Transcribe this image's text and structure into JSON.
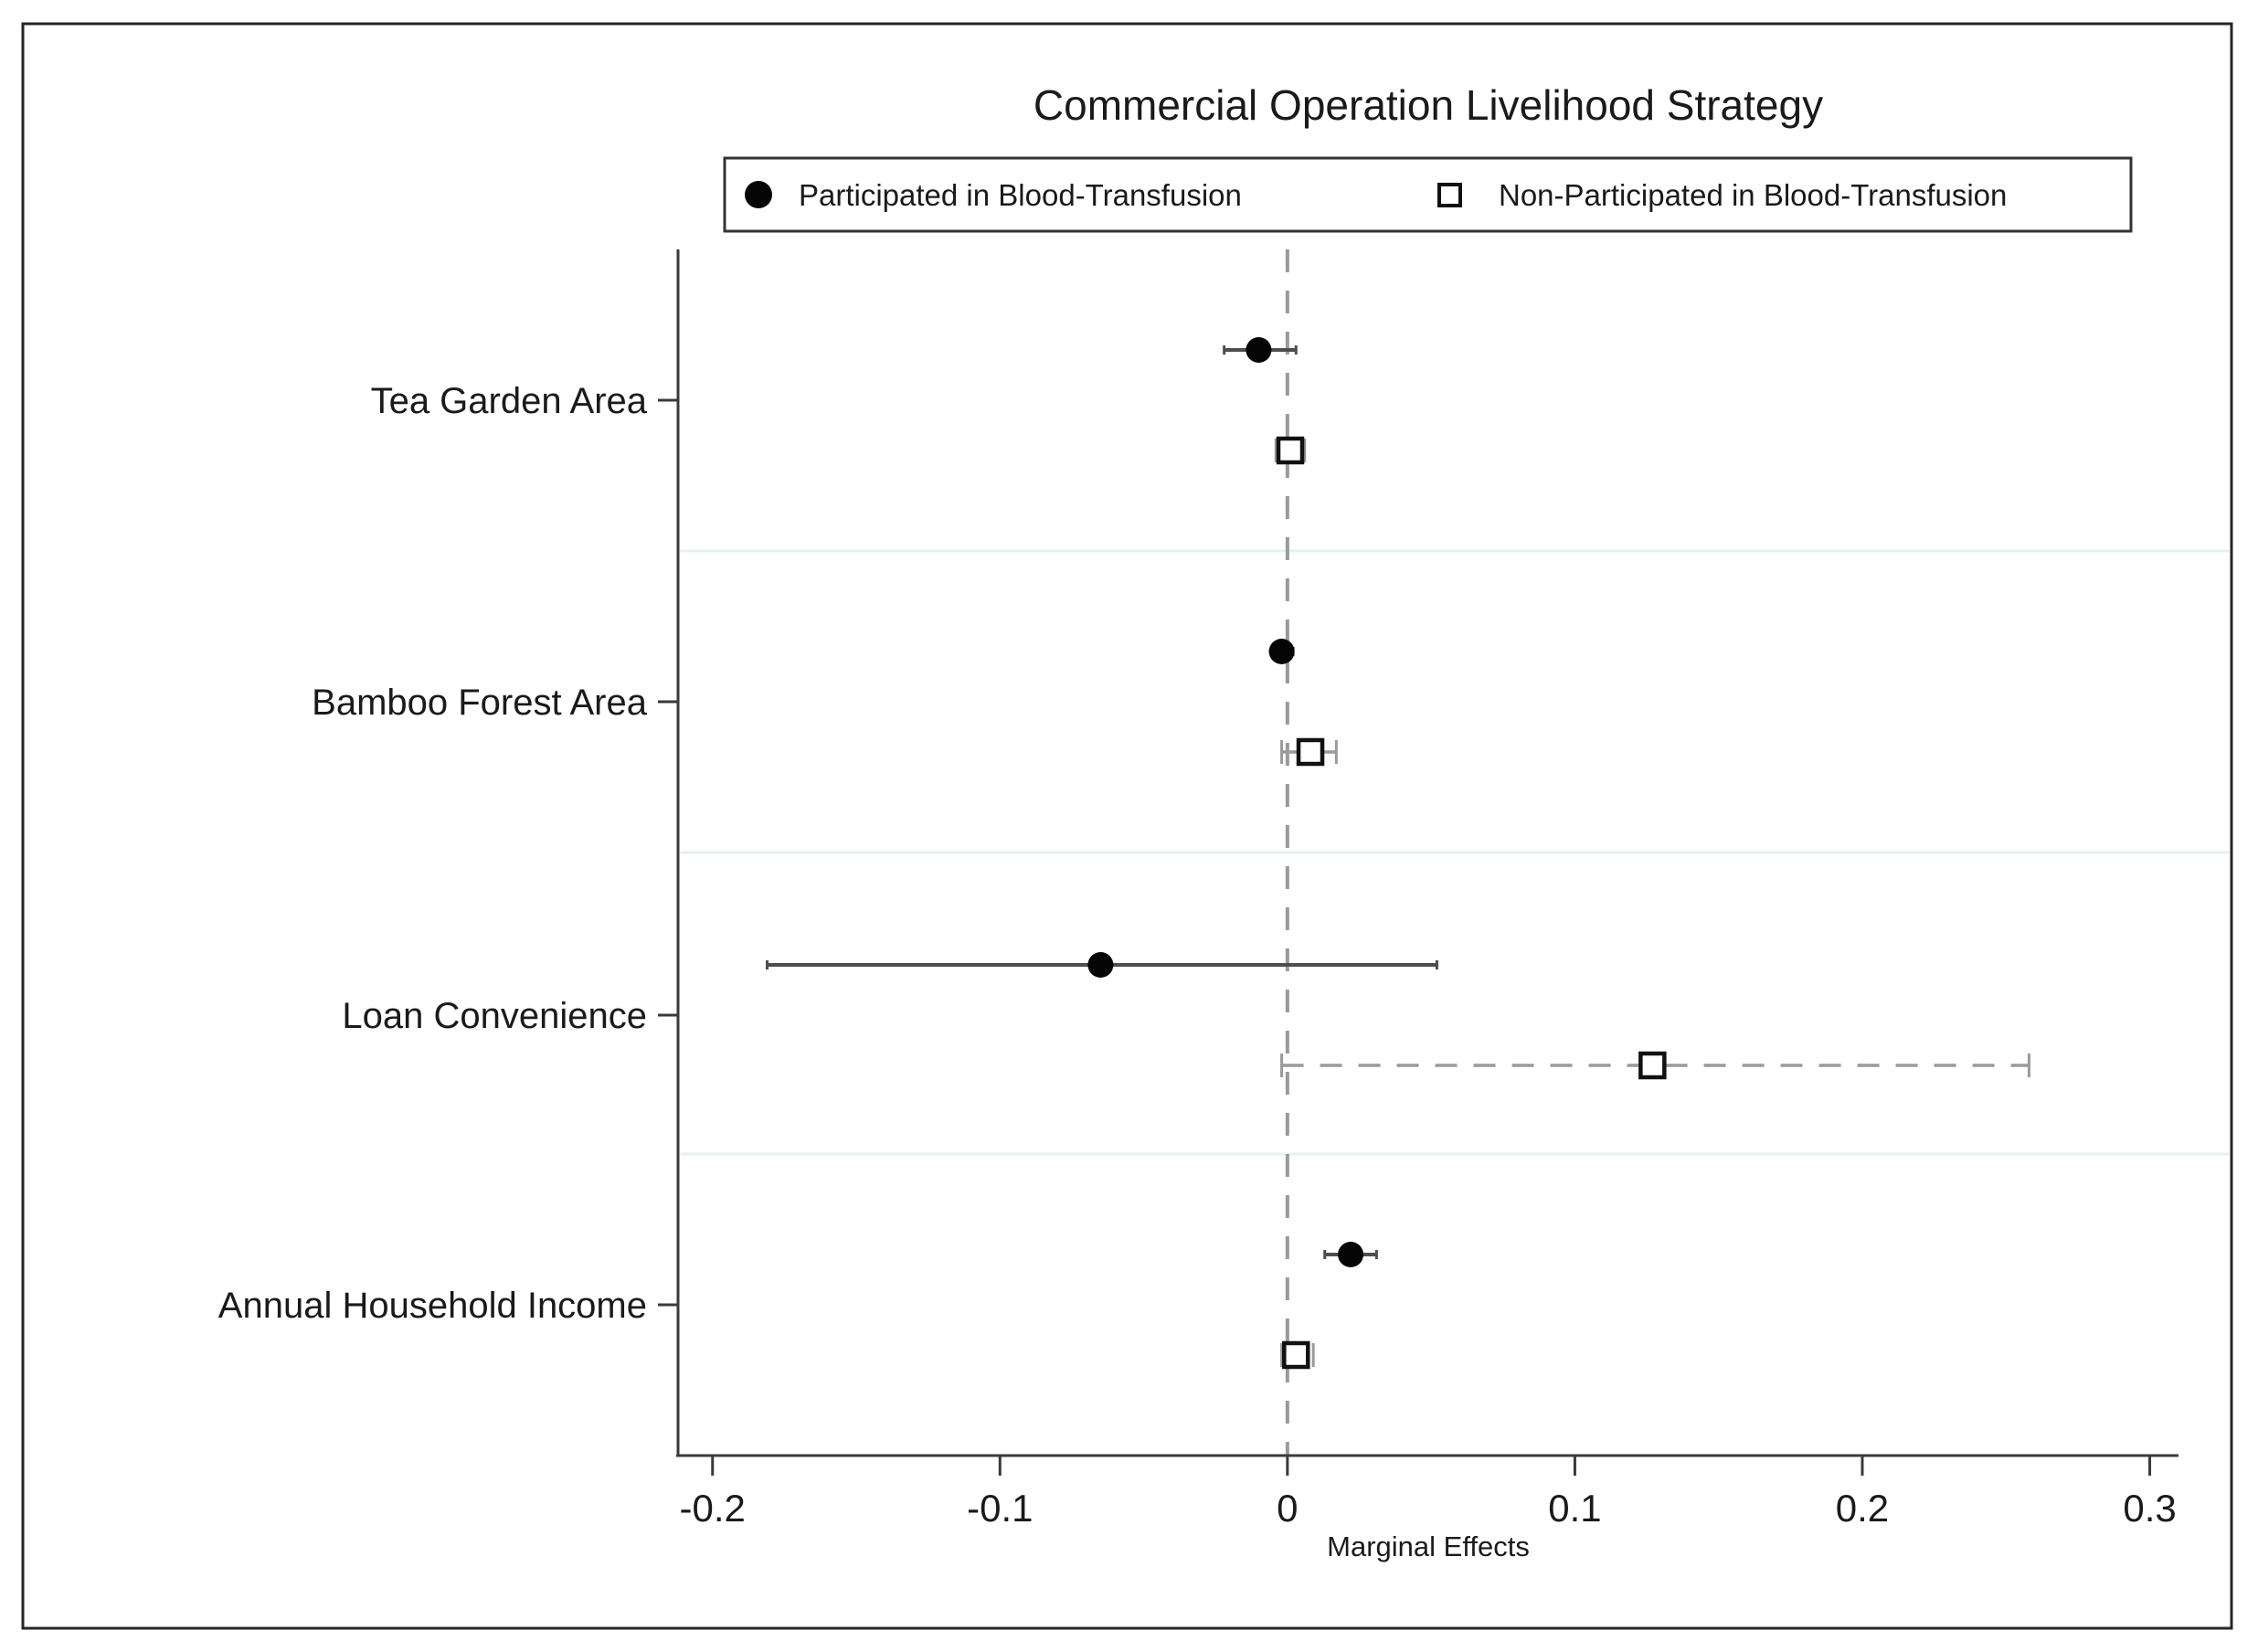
{
  "chart_data": {
    "type": "scatter",
    "subtype": "coefficient-plot-with-confidence-intervals",
    "title": "Commercial Operation Livelihood Strategy",
    "xlabel": "Marginal Effects",
    "ylabel": "",
    "xlim": [
      -0.212,
      0.31
    ],
    "xticks": [
      -0.2,
      -0.1,
      0,
      0.1,
      0.2,
      0.3
    ],
    "xtick_labels": [
      "-0.2",
      "-0.1",
      "0",
      "0.1",
      "0.2",
      "0.3"
    ],
    "zero_reference_line": 0,
    "grid": "category-separator-lines-only",
    "legend_position": "top-center-boxed",
    "legend": [
      {
        "label": "Participated in Blood-Transfusion",
        "marker": "filled-circle"
      },
      {
        "label": "Non-Participated in Blood-Transfusion",
        "marker": "open-square"
      }
    ],
    "categories": [
      "Tea Garden Area",
      "Bamboo Forest Area",
      "Loan Convenience",
      "Annual Household Income"
    ],
    "series": [
      {
        "name": "Participated in Blood-Transfusion",
        "marker": "filled-circle",
        "ci_line_style": "solid",
        "points": [
          {
            "category": "Tea Garden Area",
            "estimate": -0.01,
            "ci_low": -0.022,
            "ci_high": 0.003
          },
          {
            "category": "Bamboo Forest Area",
            "estimate": -0.002,
            "ci_low": -0.005,
            "ci_high": 0.002
          },
          {
            "category": "Loan Convenience",
            "estimate": -0.065,
            "ci_low": -0.181,
            "ci_high": 0.052
          },
          {
            "category": "Annual Household Income",
            "estimate": 0.022,
            "ci_low": 0.013,
            "ci_high": 0.031
          }
        ]
      },
      {
        "name": "Non-Participated in Blood-Transfusion",
        "marker": "open-square",
        "ci_line_style": "dashed",
        "points": [
          {
            "category": "Tea Garden Area",
            "estimate": 0.001,
            "ci_low": -0.004,
            "ci_high": 0.006
          },
          {
            "category": "Bamboo Forest Area",
            "estimate": 0.008,
            "ci_low": -0.002,
            "ci_high": 0.017
          },
          {
            "category": "Loan Convenience",
            "estimate": 0.127,
            "ci_low": -0.002,
            "ci_high": 0.258
          },
          {
            "category": "Annual Household Income",
            "estimate": 0.003,
            "ci_low": -0.002,
            "ci_high": 0.009
          }
        ]
      }
    ],
    "colors": {
      "background": "#ffffff",
      "figure_border": "#262626",
      "axis_line": "#3a3a3a",
      "text": "#1a1a1a",
      "filled_circle_marker": "#050505",
      "solid_ci_line": "#4d4d4d",
      "open_square_stroke": "#111111",
      "open_square_fill": "#ffffff",
      "dashed_ci_line": "#9a9a9a",
      "zero_line": "#9a9a9a",
      "separator_line": "#e7f0f1"
    }
  }
}
